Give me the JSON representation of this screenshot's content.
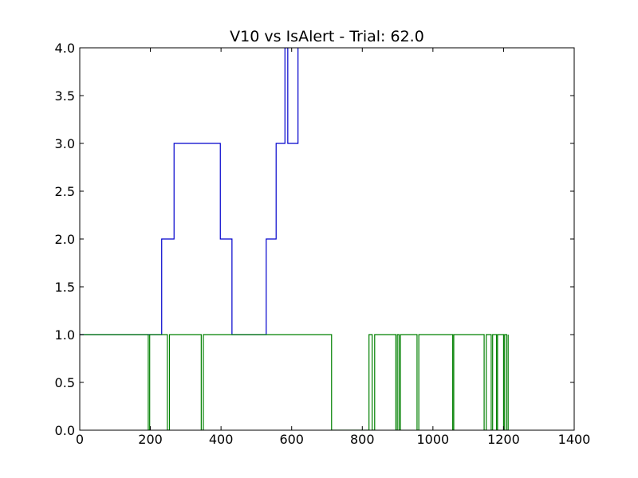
{
  "chart_data": {
    "type": "line",
    "title": "V10 vs IsAlert - Trial: 62.0",
    "xlabel": "",
    "ylabel": "",
    "xlim": [
      0,
      1400
    ],
    "ylim": [
      0.0,
      4.0
    ],
    "x_ticks": [
      "0",
      "200",
      "400",
      "600",
      "800",
      "1000",
      "1200",
      "1400"
    ],
    "y_ticks": [
      "0.0",
      "0.5",
      "1.0",
      "1.5",
      "2.0",
      "2.5",
      "3.0",
      "3.5",
      "4.0"
    ],
    "grid": false,
    "legend": "none",
    "series": [
      {
        "color": "#0000cc",
        "step": true,
        "x": [
          0,
          232,
          267,
          398,
          431,
          528,
          556,
          581,
          589,
          618
        ],
        "y": [
          1,
          2,
          3,
          2,
          1,
          2,
          3,
          4,
          3,
          4
        ],
        "x_end": 618
      },
      {
        "color": "#008000",
        "step": true,
        "x": [
          0,
          194,
          198,
          248,
          254,
          344,
          350,
          713,
          819,
          828,
          835,
          895,
          899,
          904,
          908,
          955,
          960,
          1056,
          1059,
          1145,
          1151,
          1165,
          1169,
          1180,
          1183,
          1200,
          1203,
          1209,
          1213
        ],
        "y": [
          1,
          0,
          1,
          0,
          1,
          0,
          1,
          0,
          1,
          0,
          1,
          0,
          1,
          0,
          1,
          0,
          1,
          0,
          1,
          0,
          1,
          0,
          1,
          0,
          1,
          0,
          1,
          0,
          1
        ],
        "x_end": 1213
      }
    ]
  }
}
